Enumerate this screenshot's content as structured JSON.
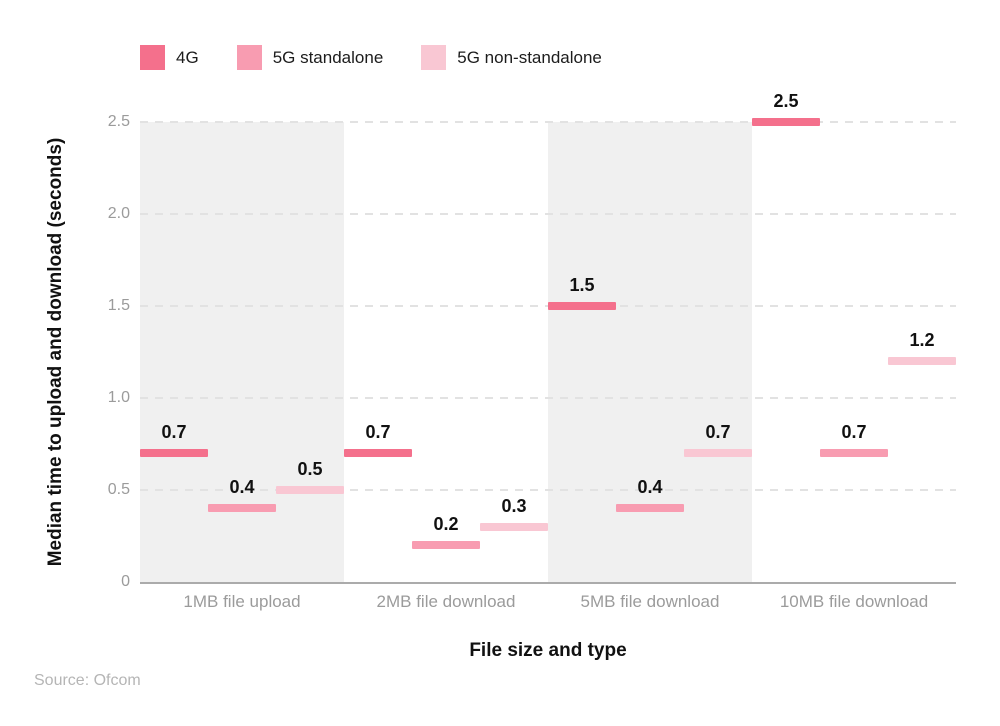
{
  "figure": {
    "y_axis_title": "Median time to upload and download (seconds)",
    "x_axis_title": "File size and type",
    "source": "Source: Ofcom"
  },
  "chart_data": {
    "type": "bar",
    "variant": "floating-dash-markers",
    "title": "",
    "xlabel": "File size and type",
    "ylabel": "Median time to upload and download (seconds)",
    "source": "Source: Ofcom",
    "categories": [
      "1MB file upload",
      "2MB file download",
      "5MB file download",
      "10MB file download"
    ],
    "series": [
      {
        "name": "4G",
        "color": "#f4708c",
        "values": [
          0.7,
          0.7,
          1.5,
          2.5
        ]
      },
      {
        "name": "5G standalone",
        "color": "#f89cb1",
        "values": [
          0.4,
          0.2,
          0.4,
          0.7
        ]
      },
      {
        "name": "5G non-standalone",
        "color": "#f9c7d3",
        "values": [
          0.5,
          0.3,
          0.7,
          1.2
        ]
      }
    ],
    "ylim": [
      0,
      2.5
    ],
    "yticks": [
      0,
      0.5,
      1.0,
      1.5,
      2.0,
      2.5
    ],
    "ytick_labels": [
      "0",
      "0.5",
      "1.0",
      "1.5",
      "2.0",
      "2.5"
    ],
    "grid": "horizontal-dashed",
    "legend_position": "top",
    "shaded_category_indexes": [
      0,
      2
    ],
    "band_color": "#f0f0f0",
    "data_labels": "above each dash, one decimal"
  }
}
